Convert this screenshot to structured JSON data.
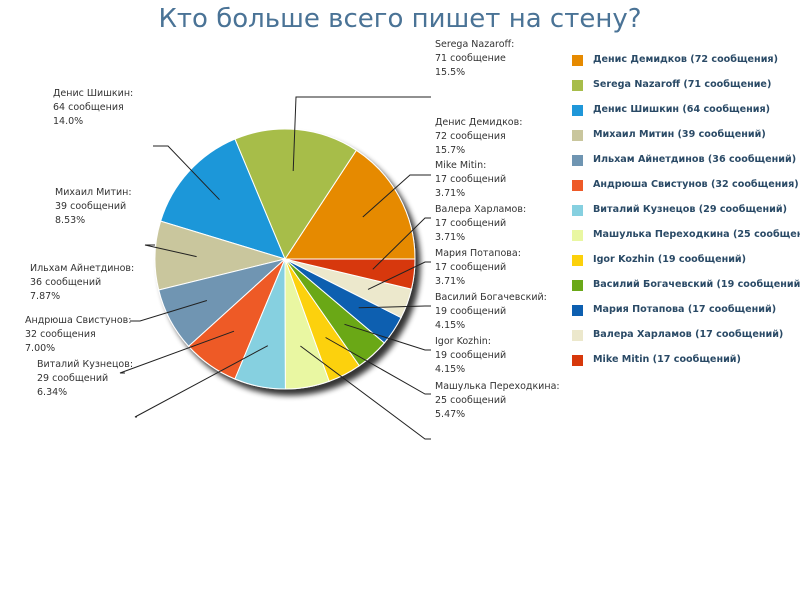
{
  "chart_data": {
    "type": "pie",
    "title": "Кто больше всего пишет на стену?",
    "slices": [
      {
        "legend": "Денис Демидков (72 сообщения)",
        "label_name": "Денис Демидков:",
        "label_count": "72 сообщения",
        "label_pct": "15.7%",
        "value": 72,
        "percent": 15.7,
        "color": "#e68a00"
      },
      {
        "legend": "Serega Nazaroff (71 сообщение)",
        "label_name": "Serega Nazaroff:",
        "label_count": "71 сообщение",
        "label_pct": "15.5%",
        "value": 71,
        "percent": 15.5,
        "color": "#a7bd4a"
      },
      {
        "legend": "Денис Шишкин (64 сообщения)",
        "label_name": "Денис Шишкин:",
        "label_count": "64 сообщения",
        "label_pct": "14.0%",
        "value": 64,
        "percent": 14.0,
        "color": "#1f97d9"
      },
      {
        "legend": "Михаил Митин (39 сообщений)",
        "label_name": "Михаил Митин:",
        "label_count": "39 сообщений",
        "label_pct": "8.53%",
        "value": 39,
        "percent": 8.53,
        "color": "#c9c69d"
      },
      {
        "legend": "Ильхам Айнетдинов (36 сообщений)",
        "label_name": "Ильхам Айнетдинов:",
        "label_count": "36 сообщений",
        "label_pct": "7.87%",
        "value": 36,
        "percent": 7.87,
        "color": "#6f95b2"
      },
      {
        "legend": "Андрюша Свистунов (32 сообщения)",
        "label_name": "Андрюша Свистунов:",
        "label_count": "32 сообщения",
        "label_pct": "7.00%",
        "value": 32,
        "percent": 7.0,
        "color": "#ee5a28"
      },
      {
        "legend": "Виталий Кузнецов (29 сообщений)",
        "label_name": "Виталий Кузнецов:",
        "label_count": "29 сообщений",
        "label_pct": "6.34%",
        "value": 29,
        "percent": 6.34,
        "color": "#86d0e0"
      },
      {
        "legend": "Машулька Переходкина (25 сообщен",
        "label_name": "Машулька Переходкина:",
        "label_count": "25 сообщений",
        "label_pct": "5.47%",
        "value": 25,
        "percent": 5.47,
        "color": "#e9f7a2"
      },
      {
        "legend": "Igor Kozhin (19 сообщений)",
        "label_name": "Igor Kozhin:",
        "label_count": "19 сообщений",
        "label_pct": "4.15%",
        "value": 19,
        "percent": 4.15,
        "color": "#fcd10b"
      },
      {
        "legend": "Василий Богачевский (19 сообщений)",
        "label_name": "Василий Богачевский:",
        "label_count": "19 сообщений",
        "label_pct": "4.15%",
        "value": 19,
        "percent": 4.15,
        "color": "#6aa818"
      },
      {
        "legend": "Мария Потапова (17 сообщений)",
        "label_name": "Мария Потапова:",
        "label_count": "17 сообщений",
        "label_pct": "3.71%",
        "value": 17,
        "percent": 3.71,
        "color": "#0d5fb0"
      },
      {
        "legend": "Валера Харламов (17 сообщений)",
        "label_name": "Валера Харламов:",
        "label_count": "17 сообщений",
        "label_pct": "3.71%",
        "value": 17,
        "percent": 3.71,
        "color": "#ece8cc"
      },
      {
        "legend": "Mike Mitin (17 сообщений)",
        "label_name": "Mike Mitin:",
        "label_count": "17 сообщений",
        "label_pct": "3.71%",
        "value": 17,
        "percent": 3.71,
        "color": "#d7380b"
      }
    ]
  }
}
